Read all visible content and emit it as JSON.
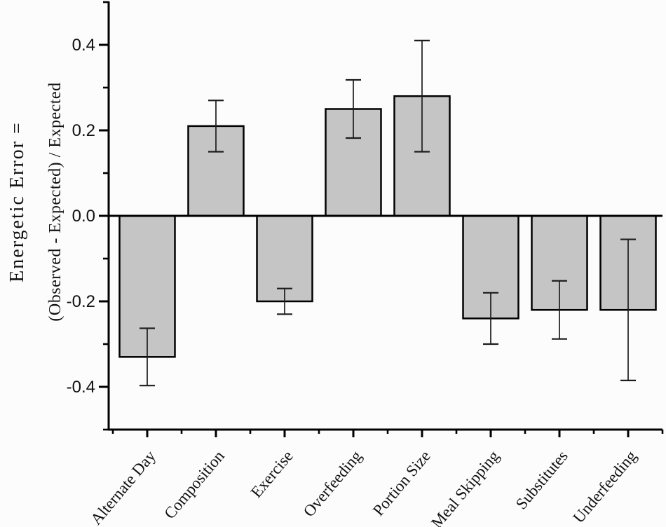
{
  "chart_data": {
    "type": "bar",
    "title": "",
    "categories": [
      "Alternate Day",
      "Composition",
      "Exercise",
      "Overfeeding",
      "Portion Size",
      "Meal Skipping",
      "Substitutes",
      "Underfeeding"
    ],
    "values": [
      -0.33,
      0.21,
      -0.2,
      0.25,
      0.28,
      -0.24,
      -0.22,
      -0.22
    ],
    "errors": [
      0.067,
      0.06,
      0.03,
      0.068,
      0.13,
      0.06,
      0.068,
      0.165
    ],
    "series": [
      {
        "name": "Energetic Error",
        "values": [
          -0.33,
          0.21,
          -0.2,
          0.25,
          0.28,
          -0.24,
          -0.22,
          -0.22
        ]
      }
    ],
    "ylabel_line1": "Energetic Error =",
    "ylabel_line2": "(Observed - Expected) / Expected",
    "xlabel": "",
    "ylim": [
      -0.5,
      0.5
    ],
    "ytick_values": [
      0.4,
      0.2,
      0.0,
      -0.2,
      -0.4
    ],
    "ytick_labels": [
      "0.4",
      "0.2",
      "0.0",
      "-0.2",
      "-0.4"
    ],
    "ytick_minor_values": [
      0.5,
      0.3,
      0.1,
      -0.1,
      -0.3,
      -0.5
    ],
    "grid": "off",
    "legend": "none",
    "error_bars": true,
    "bar_fill": "#c5c5c5",
    "bar_stroke": "#000000",
    "error_color": "#1c1c1c",
    "axis_color": "#000000",
    "text_color": "#111111",
    "background": "#fcfcfc"
  }
}
